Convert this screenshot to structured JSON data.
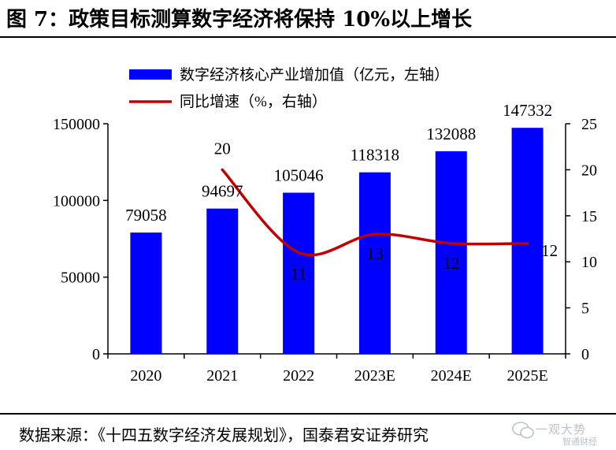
{
  "header": {
    "title": "图 7：政策目标测算数字经济将保持 10%以上增长"
  },
  "footer": {
    "source": "数据来源：《十四五数字经济发展规划》，国泰君安证券研究"
  },
  "watermark": {
    "text": "一观大势",
    "subtext": "智通财经"
  },
  "colors": {
    "bar": "#0000ff",
    "line": "#c00000"
  },
  "chart_data": {
    "type": "bar",
    "categories": [
      "2020",
      "2021",
      "2022",
      "2023E",
      "2024E",
      "2025E"
    ],
    "series": [
      {
        "name": "数字经济核心产业增加值（亿元，左轴）",
        "type": "bar",
        "axis": "left",
        "values": [
          79058,
          94697,
          105046,
          118318,
          132088,
          147332
        ]
      },
      {
        "name": "同比增速（%，右轴）",
        "type": "line",
        "axis": "right",
        "values": [
          null,
          20,
          11,
          13,
          12,
          12
        ]
      }
    ],
    "bar_labels": [
      "79058",
      "94697",
      "105046",
      "118318",
      "132088",
      "147332"
    ],
    "line_labels": [
      "",
      "20",
      "11",
      "13",
      "12",
      "12"
    ],
    "left_axis": {
      "ylim": [
        0,
        150000
      ],
      "ticks": [
        0,
        50000,
        100000,
        150000
      ],
      "tick_labels": [
        "0",
        "50000",
        "100000",
        "150000"
      ]
    },
    "right_axis": {
      "ylim": [
        0,
        25
      ],
      "ticks": [
        0,
        5,
        10,
        15,
        20,
        25
      ],
      "tick_labels": [
        "0",
        "5",
        "10",
        "15",
        "20",
        "25"
      ]
    },
    "grid": false,
    "legend": "top-left"
  }
}
